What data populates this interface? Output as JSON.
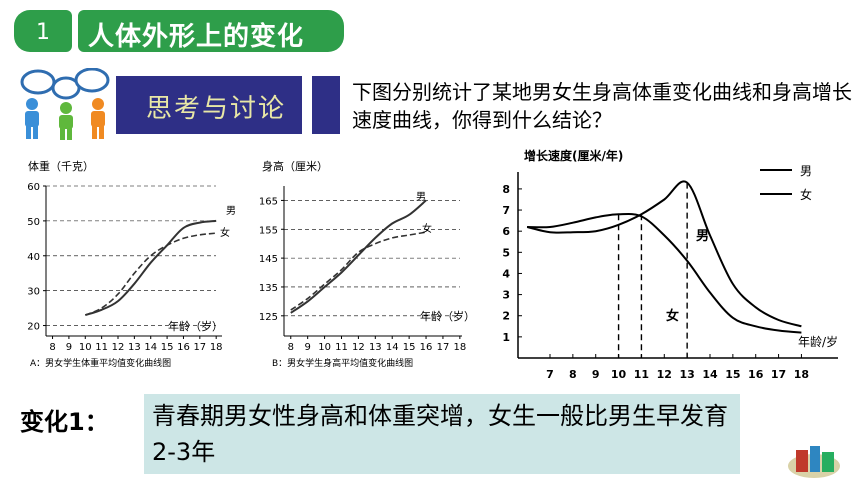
{
  "header": {
    "number": "1",
    "title": "人体外形上的变化"
  },
  "discussion": {
    "label": "思考与讨论",
    "question": "下图分别统计了某地男女生身高体重变化曲线和身高增长速度曲线，你得到什么结论？"
  },
  "chart_data": [
    {
      "type": "line",
      "caption": "A：男女学生体重平均值变化曲线图",
      "ylabel": "体重（千克）",
      "xlabel": "年龄（岁）",
      "ylim": [
        17,
        60
      ],
      "y_ticks": [
        "20",
        "30",
        "40",
        "50",
        "60"
      ],
      "x_ticks": [
        "8",
        "9",
        "10",
        "11",
        "12",
        "13",
        "14",
        "15",
        "16",
        "17",
        "18"
      ],
      "x": [
        10,
        11,
        12,
        13,
        14,
        15,
        16,
        17,
        18
      ],
      "series": [
        {
          "name": "男",
          "values": [
            23,
            24.5,
            27,
            32,
            38,
            43,
            48,
            49.5,
            50
          ]
        },
        {
          "name": "女",
          "values": [
            23,
            25,
            29,
            35,
            40,
            43,
            45,
            46,
            46.5
          ]
        }
      ]
    },
    {
      "type": "line",
      "caption": "B：男女学生身高平均值变化曲线图",
      "ylabel": "身高（厘米）",
      "xlabel": "年龄（岁）",
      "ylim": [
        118,
        170
      ],
      "y_ticks": [
        "125",
        "135",
        "145",
        "155",
        "165"
      ],
      "x_ticks": [
        "8",
        "9",
        "10",
        "11",
        "12",
        "13",
        "14",
        "15",
        "16",
        "17",
        "18"
      ],
      "x": [
        8,
        9,
        10,
        11,
        12,
        13,
        14,
        15,
        16
      ],
      "series": [
        {
          "name": "男",
          "values": [
            126,
            130,
            135,
            140,
            146,
            152,
            157,
            160,
            165
          ]
        },
        {
          "name": "女",
          "values": [
            127,
            131,
            136,
            141,
            147,
            150,
            152,
            153,
            154
          ]
        }
      ]
    },
    {
      "type": "line",
      "caption": "",
      "ylabel": "增长速度(厘米/年)",
      "xlabel": "年龄/岁",
      "ylim": [
        0,
        8.8
      ],
      "y_ticks": [
        "1",
        "2",
        "3",
        "4",
        "5",
        "6",
        "7",
        "8"
      ],
      "x_ticks": [
        "7",
        "8",
        "9",
        "10",
        "11",
        "12",
        "13",
        "14",
        "15",
        "16",
        "17",
        "18"
      ],
      "legend": [
        "男",
        "女"
      ],
      "series": [
        {
          "name": "男",
          "x": [
            6,
            7,
            8,
            9,
            10,
            11,
            12,
            13,
            14,
            15,
            16,
            17,
            18
          ],
          "values": [
            6.2,
            5.95,
            5.95,
            6.0,
            6.3,
            6.8,
            7.5,
            8.3,
            5.8,
            3.5,
            2.4,
            1.8,
            1.5
          ]
        },
        {
          "name": "女",
          "x": [
            6,
            7,
            8,
            9,
            10,
            11,
            12,
            13,
            14,
            15,
            16,
            17,
            18
          ],
          "values": [
            6.2,
            6.2,
            6.4,
            6.65,
            6.8,
            6.7,
            5.8,
            4.6,
            3.1,
            1.9,
            1.5,
            1.3,
            1.2
          ]
        }
      ],
      "series_labels": [
        "男",
        "女"
      ]
    }
  ],
  "conclusion": {
    "label": "变化1：",
    "text": "青春期男女性身高和体重突增，女生一般比男生早发育2-3年"
  }
}
